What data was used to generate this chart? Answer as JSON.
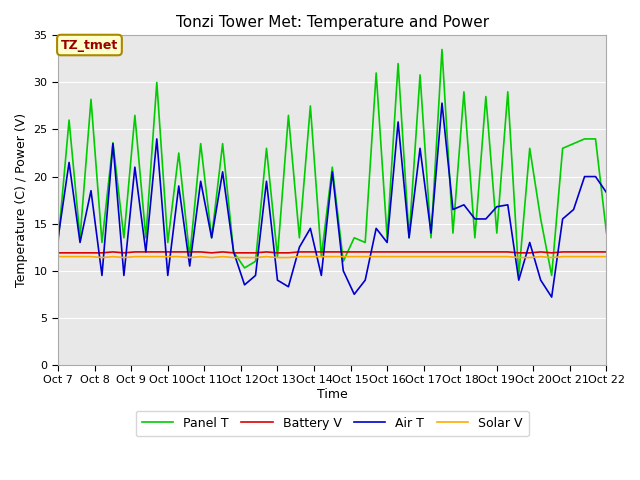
{
  "title": "Tonzi Tower Met: Temperature and Power",
  "xlabel": "Time",
  "ylabel": "Temperature (C) / Power (V)",
  "annotation": "TZ_tmet",
  "ylim": [
    0,
    35
  ],
  "yticks": [
    0,
    5,
    10,
    15,
    20,
    25,
    30,
    35
  ],
  "xtick_labels": [
    "Oct 7",
    "Oct 8",
    "Oct 9",
    "Oct 10",
    "Oct 11",
    "Oct 12",
    "Oct 13",
    "Oct 14",
    "Oct 15",
    "Oct 16",
    "Oct 17",
    "Oct 18",
    "Oct 19",
    "Oct 20",
    "Oct 21",
    "Oct 22"
  ],
  "background_color": "#e8e8e8",
  "panel_t_color": "#00cc00",
  "battery_v_color": "#dd0000",
  "air_t_color": "#0000cc",
  "solar_v_color": "#ffaa00",
  "panel_t": [
    13.0,
    26.0,
    13.5,
    28.2,
    13.0,
    23.6,
    13.5,
    26.5,
    13.5,
    30.0,
    13.0,
    22.5,
    11.5,
    23.5,
    13.5,
    23.5,
    12.0,
    10.3,
    11.0,
    23.0,
    11.5,
    26.5,
    13.5,
    27.5,
    11.5,
    21.0,
    11.0,
    13.5,
    13.0,
    31.0,
    13.5,
    32.0,
    13.5,
    30.8,
    13.5,
    33.5,
    14.0,
    29.0,
    13.5,
    28.5,
    14.0,
    29.0,
    9.5,
    23.0,
    15.5,
    9.5,
    23.0,
    23.5,
    24.0,
    24.0,
    14.0
  ],
  "air_t": [
    13.5,
    21.5,
    13.0,
    18.5,
    9.5,
    23.5,
    9.5,
    21.0,
    12.0,
    24.0,
    9.5,
    19.0,
    10.5,
    19.5,
    13.5,
    20.5,
    12.0,
    8.5,
    9.5,
    19.5,
    9.0,
    8.3,
    12.5,
    14.5,
    9.5,
    20.5,
    10.0,
    7.5,
    9.0,
    14.5,
    13.0,
    25.8,
    13.5,
    23.0,
    14.0,
    27.8,
    16.5,
    17.0,
    15.5,
    15.5,
    16.8,
    17.0,
    9.0,
    13.0,
    9.0,
    7.2,
    15.5,
    16.5,
    20.0,
    20.0,
    18.3
  ],
  "battery_v": [
    11.9,
    11.9,
    11.9,
    11.9,
    11.9,
    12.0,
    11.9,
    12.0,
    12.0,
    12.0,
    12.0,
    12.0,
    12.0,
    12.0,
    11.9,
    12.0,
    11.9,
    11.9,
    11.9,
    12.0,
    11.9,
    11.9,
    12.0,
    12.0,
    12.0,
    12.0,
    12.0,
    12.0,
    12.0,
    12.0,
    12.0,
    12.0,
    12.0,
    12.0,
    12.0,
    12.0,
    12.0,
    12.0,
    12.0,
    12.0,
    12.0,
    12.0,
    11.9,
    11.9,
    12.0,
    11.9,
    12.0,
    12.0,
    12.0,
    12.0,
    12.0
  ],
  "solar_v": [
    11.5,
    11.5,
    11.5,
    11.5,
    11.4,
    11.5,
    11.4,
    11.5,
    11.5,
    11.5,
    11.5,
    11.5,
    11.4,
    11.5,
    11.4,
    11.5,
    11.4,
    11.4,
    11.4,
    11.5,
    11.4,
    11.4,
    11.5,
    11.5,
    11.5,
    11.5,
    11.5,
    11.5,
    11.5,
    11.5,
    11.5,
    11.5,
    11.5,
    11.5,
    11.5,
    11.5,
    11.5,
    11.5,
    11.5,
    11.5,
    11.5,
    11.5,
    11.4,
    11.4,
    11.5,
    11.4,
    11.5,
    11.5,
    11.5,
    11.5,
    11.5
  ],
  "line_width": 1.2,
  "title_fontsize": 11,
  "tick_fontsize": 8,
  "label_fontsize": 9
}
